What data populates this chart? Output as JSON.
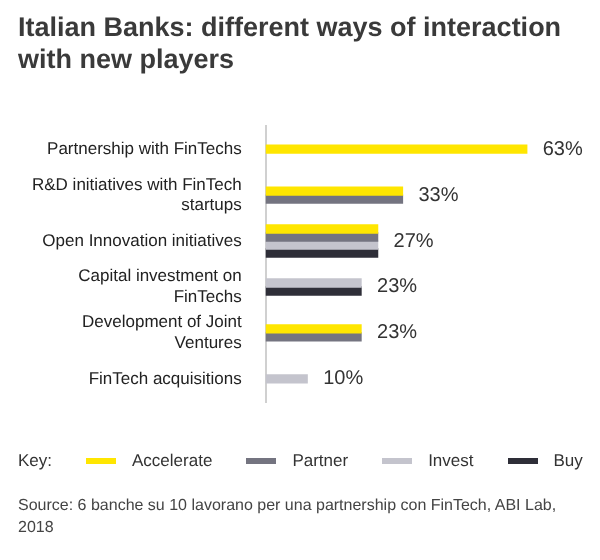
{
  "chart_data": {
    "type": "bar",
    "orientation": "horizontal",
    "title": "Italian Banks: different ways of interaction with new players",
    "legend_title": "Key:",
    "legend": "bottom",
    "grid": false,
    "categories": [
      "Partnership with FinTechs",
      "R&D initiatives with FinTech startups",
      "Open Innovation initiatives",
      "Capital investment on FinTechs",
      "Development of Joint Ventures",
      "FinTech acquisitions"
    ],
    "series": [
      {
        "name": "Accelerate",
        "color": "#ffe600",
        "values": [
          63,
          33,
          27,
          null,
          23,
          null
        ],
        "value_labels": [
          "63%",
          "33%",
          "27%",
          null,
          "23%",
          null
        ]
      },
      {
        "name": "Partner",
        "color": "#747480",
        "values": [
          null,
          33,
          27,
          null,
          23,
          null
        ]
      },
      {
        "name": "Invest",
        "color": "#c4c4cd",
        "values": [
          null,
          null,
          27,
          23,
          null,
          10
        ],
        "value_labels": [
          null,
          null,
          null,
          "23%",
          null,
          "10%"
        ]
      },
      {
        "name": "Buy",
        "color": "#2e2e38",
        "values": [
          null,
          null,
          27,
          23,
          null,
          null
        ]
      }
    ],
    "annotations": [
      "Source: 6 banche su 10 lavorano per una partnership con FinTech, ABI Lab, 2018"
    ]
  }
}
